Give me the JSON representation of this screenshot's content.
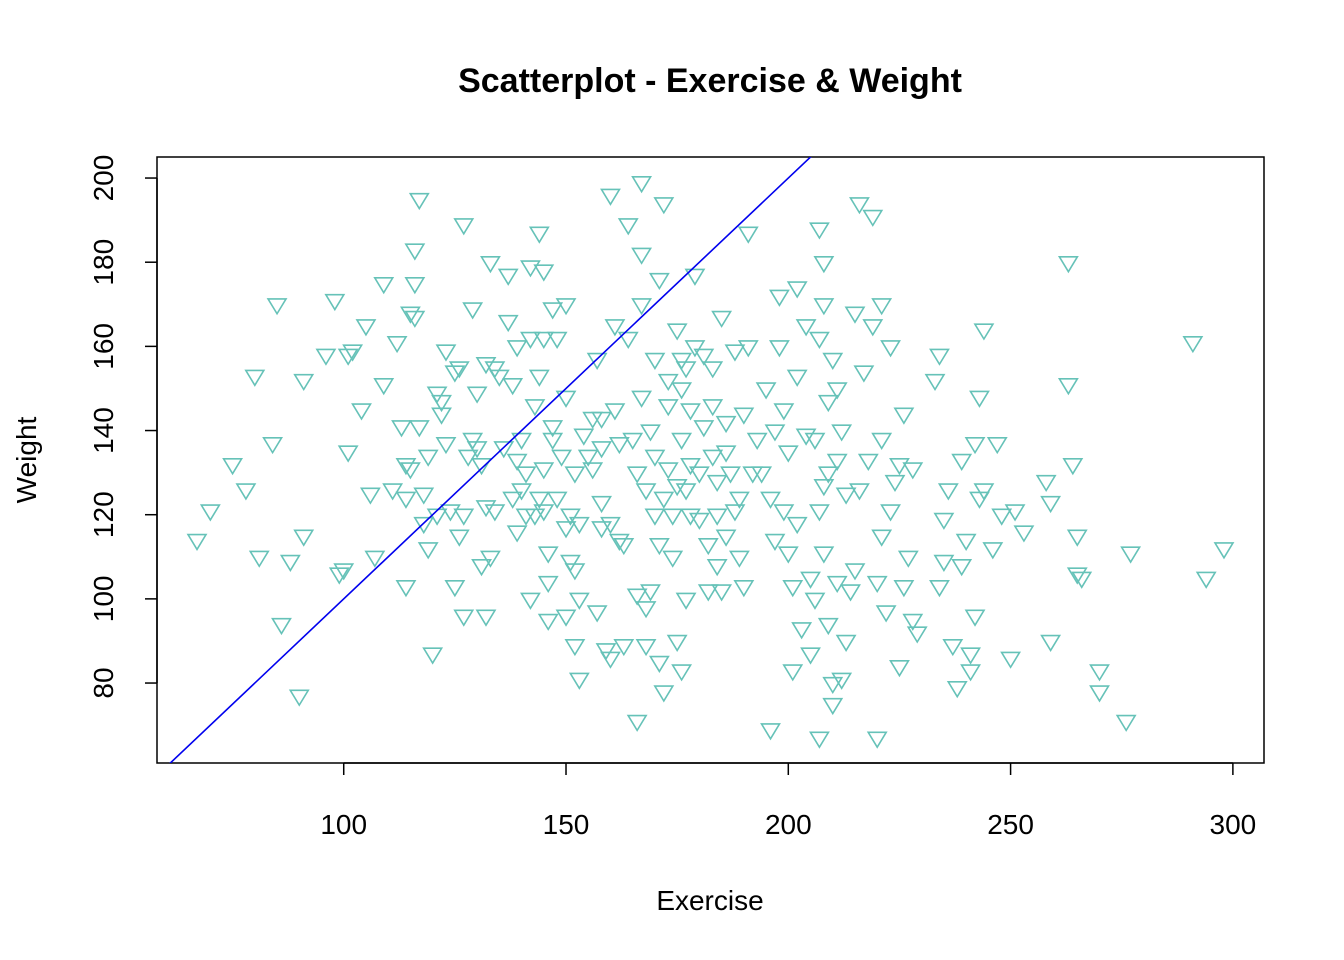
{
  "chart_data": {
    "type": "scatter",
    "title": "Scatterplot - Exercise & Weight",
    "xlabel": "Exercise",
    "ylabel": "Weight",
    "xlim": [
      58,
      307
    ],
    "ylim": [
      61,
      205
    ],
    "xticks": [
      100,
      150,
      200,
      250,
      300
    ],
    "yticks": [
      80,
      100,
      120,
      140,
      160,
      180,
      200
    ],
    "grid": false,
    "legend": "none",
    "marker": "triangle-down",
    "point_color": "#66c2b8",
    "line_color": "#0000ee",
    "fit_line": {
      "intercept": 0,
      "slope": 1
    },
    "points": [
      [
        67,
        114
      ],
      [
        70,
        121
      ],
      [
        75,
        132
      ],
      [
        78,
        126
      ],
      [
        80,
        153
      ],
      [
        81,
        110
      ],
      [
        84,
        137
      ],
      [
        85,
        170
      ],
      [
        86,
        94
      ],
      [
        88,
        109
      ],
      [
        90,
        77
      ],
      [
        91,
        152
      ],
      [
        91,
        115
      ],
      [
        96,
        158
      ],
      [
        98,
        171
      ],
      [
        99,
        106
      ],
      [
        100,
        107
      ],
      [
        101,
        135
      ],
      [
        101,
        158
      ],
      [
        102,
        159
      ],
      [
        104,
        145
      ],
      [
        105,
        165
      ],
      [
        106,
        125
      ],
      [
        107,
        110
      ],
      [
        109,
        151
      ],
      [
        109,
        175
      ],
      [
        111,
        126
      ],
      [
        112,
        161
      ],
      [
        113,
        141
      ],
      [
        114,
        124
      ],
      [
        114,
        132
      ],
      [
        114,
        103
      ],
      [
        115,
        131
      ],
      [
        115,
        168
      ],
      [
        116,
        167
      ],
      [
        116,
        183
      ],
      [
        116,
        175
      ],
      [
        117,
        195
      ],
      [
        117,
        141
      ],
      [
        118,
        118
      ],
      [
        118,
        125
      ],
      [
        119,
        112
      ],
      [
        119,
        134
      ],
      [
        120,
        87
      ],
      [
        121,
        149
      ],
      [
        121,
        120
      ],
      [
        122,
        144
      ],
      [
        122,
        147
      ],
      [
        123,
        159
      ],
      [
        123,
        137
      ],
      [
        124,
        121
      ],
      [
        125,
        154
      ],
      [
        125,
        103
      ],
      [
        126,
        115
      ],
      [
        126,
        155
      ],
      [
        127,
        96
      ],
      [
        127,
        189
      ],
      [
        127,
        120
      ],
      [
        128,
        134
      ],
      [
        129,
        138
      ],
      [
        129,
        169
      ],
      [
        130,
        136
      ],
      [
        130,
        149
      ],
      [
        131,
        108
      ],
      [
        131,
        132
      ],
      [
        132,
        122
      ],
      [
        132,
        96
      ],
      [
        132,
        156
      ],
      [
        133,
        110
      ],
      [
        133,
        180
      ],
      [
        134,
        155
      ],
      [
        134,
        121
      ],
      [
        135,
        153
      ],
      [
        136,
        136
      ],
      [
        137,
        177
      ],
      [
        137,
        166
      ],
      [
        138,
        151
      ],
      [
        138,
        124
      ],
      [
        139,
        160
      ],
      [
        139,
        116
      ],
      [
        139,
        133
      ],
      [
        140,
        126
      ],
      [
        140,
        138
      ],
      [
        141,
        120
      ],
      [
        141,
        130
      ],
      [
        142,
        100
      ],
      [
        142,
        162
      ],
      [
        142,
        179
      ],
      [
        143,
        120
      ],
      [
        143,
        146
      ],
      [
        144,
        187
      ],
      [
        144,
        124
      ],
      [
        144,
        153
      ],
      [
        145,
        121
      ],
      [
        145,
        131
      ],
      [
        145,
        162
      ],
      [
        145,
        178
      ],
      [
        146,
        95
      ],
      [
        146,
        111
      ],
      [
        146,
        104
      ],
      [
        147,
        141
      ],
      [
        147,
        138
      ],
      [
        147,
        169
      ],
      [
        148,
        162
      ],
      [
        148,
        124
      ],
      [
        149,
        134
      ],
      [
        150,
        96
      ],
      [
        150,
        117
      ],
      [
        150,
        148
      ],
      [
        150,
        170
      ],
      [
        151,
        120
      ],
      [
        151,
        109
      ],
      [
        152,
        107
      ],
      [
        152,
        89
      ],
      [
        152,
        130
      ],
      [
        153,
        81
      ],
      [
        153,
        118
      ],
      [
        153,
        100
      ],
      [
        154,
        139
      ],
      [
        155,
        134
      ],
      [
        156,
        131
      ],
      [
        156,
        143
      ],
      [
        157,
        157
      ],
      [
        157,
        97
      ],
      [
        158,
        136
      ],
      [
        158,
        123
      ],
      [
        158,
        117
      ],
      [
        158,
        143
      ],
      [
        159,
        88
      ],
      [
        160,
        196
      ],
      [
        160,
        118
      ],
      [
        160,
        86
      ],
      [
        161,
        165
      ],
      [
        161,
        145
      ],
      [
        162,
        114
      ],
      [
        162,
        137
      ],
      [
        163,
        113
      ],
      [
        163,
        89
      ],
      [
        164,
        189
      ],
      [
        164,
        162
      ],
      [
        165,
        138
      ],
      [
        166,
        71
      ],
      [
        166,
        101
      ],
      [
        166,
        130
      ],
      [
        167,
        148
      ],
      [
        167,
        170
      ],
      [
        167,
        182
      ],
      [
        167,
        199
      ],
      [
        168,
        98
      ],
      [
        168,
        126
      ],
      [
        168,
        89
      ],
      [
        169,
        102
      ],
      [
        169,
        140
      ],
      [
        170,
        157
      ],
      [
        170,
        120
      ],
      [
        170,
        134
      ],
      [
        171,
        85
      ],
      [
        171,
        113
      ],
      [
        171,
        176
      ],
      [
        172,
        78
      ],
      [
        172,
        194
      ],
      [
        172,
        124
      ],
      [
        173,
        152
      ],
      [
        173,
        146
      ],
      [
        173,
        131
      ],
      [
        174,
        120
      ],
      [
        174,
        110
      ],
      [
        175,
        90
      ],
      [
        175,
        127
      ],
      [
        175,
        164
      ],
      [
        176,
        138
      ],
      [
        176,
        150
      ],
      [
        176,
        83
      ],
      [
        176,
        157
      ],
      [
        177,
        126
      ],
      [
        177,
        155
      ],
      [
        177,
        100
      ],
      [
        178,
        120
      ],
      [
        178,
        132
      ],
      [
        178,
        145
      ],
      [
        179,
        177
      ],
      [
        179,
        160
      ],
      [
        180,
        119
      ],
      [
        180,
        130
      ],
      [
        181,
        141
      ],
      [
        181,
        158
      ],
      [
        182,
        113
      ],
      [
        182,
        102
      ],
      [
        183,
        134
      ],
      [
        183,
        146
      ],
      [
        183,
        155
      ],
      [
        184,
        120
      ],
      [
        184,
        128
      ],
      [
        184,
        108
      ],
      [
        185,
        102
      ],
      [
        185,
        167
      ],
      [
        186,
        142
      ],
      [
        186,
        135
      ],
      [
        186,
        115
      ],
      [
        187,
        130
      ],
      [
        188,
        121
      ],
      [
        188,
        159
      ],
      [
        189,
        110
      ],
      [
        189,
        124
      ],
      [
        190,
        144
      ],
      [
        190,
        103
      ],
      [
        191,
        187
      ],
      [
        191,
        160
      ],
      [
        192,
        130
      ],
      [
        193,
        138
      ],
      [
        194,
        130
      ],
      [
        195,
        150
      ],
      [
        196,
        69
      ],
      [
        196,
        124
      ],
      [
        197,
        114
      ],
      [
        197,
        140
      ],
      [
        198,
        160
      ],
      [
        198,
        172
      ],
      [
        199,
        121
      ],
      [
        199,
        145
      ],
      [
        200,
        111
      ],
      [
        200,
        135
      ],
      [
        201,
        83
      ],
      [
        201,
        103
      ],
      [
        202,
        174
      ],
      [
        202,
        153
      ],
      [
        202,
        118
      ],
      [
        203,
        93
      ],
      [
        204,
        139
      ],
      [
        204,
        165
      ],
      [
        205,
        105
      ],
      [
        205,
        87
      ],
      [
        206,
        100
      ],
      [
        206,
        138
      ],
      [
        207,
        162
      ],
      [
        207,
        121
      ],
      [
        207,
        67
      ],
      [
        207,
        188
      ],
      [
        208,
        180
      ],
      [
        208,
        127
      ],
      [
        208,
        170
      ],
      [
        208,
        111
      ],
      [
        209,
        130
      ],
      [
        209,
        147
      ],
      [
        209,
        94
      ],
      [
        210,
        80
      ],
      [
        210,
        75
      ],
      [
        210,
        157
      ],
      [
        211,
        133
      ],
      [
        211,
        150
      ],
      [
        211,
        104
      ],
      [
        212,
        81
      ],
      [
        212,
        140
      ],
      [
        213,
        90
      ],
      [
        213,
        125
      ],
      [
        214,
        102
      ],
      [
        215,
        107
      ],
      [
        215,
        168
      ],
      [
        216,
        194
      ],
      [
        216,
        126
      ],
      [
        217,
        154
      ],
      [
        218,
        133
      ],
      [
        219,
        165
      ],
      [
        219,
        191
      ],
      [
        220,
        104
      ],
      [
        220,
        67
      ],
      [
        221,
        138
      ],
      [
        221,
        170
      ],
      [
        221,
        115
      ],
      [
        222,
        97
      ],
      [
        223,
        121
      ],
      [
        223,
        160
      ],
      [
        224,
        128
      ],
      [
        225,
        132
      ],
      [
        225,
        84
      ],
      [
        226,
        144
      ],
      [
        226,
        103
      ],
      [
        227,
        110
      ],
      [
        228,
        95
      ],
      [
        228,
        131
      ],
      [
        229,
        92
      ],
      [
        233,
        152
      ],
      [
        234,
        103
      ],
      [
        234,
        158
      ],
      [
        235,
        109
      ],
      [
        235,
        119
      ],
      [
        236,
        126
      ],
      [
        237,
        89
      ],
      [
        238,
        79
      ],
      [
        239,
        108
      ],
      [
        239,
        133
      ],
      [
        240,
        114
      ],
      [
        241,
        87
      ],
      [
        241,
        83
      ],
      [
        242,
        137
      ],
      [
        242,
        96
      ],
      [
        243,
        148
      ],
      [
        243,
        124
      ],
      [
        244,
        164
      ],
      [
        244,
        126
      ],
      [
        246,
        112
      ],
      [
        247,
        137
      ],
      [
        248,
        120
      ],
      [
        250,
        86
      ],
      [
        251,
        121
      ],
      [
        253,
        116
      ],
      [
        258,
        128
      ],
      [
        259,
        123
      ],
      [
        259,
        90
      ],
      [
        263,
        180
      ],
      [
        263,
        151
      ],
      [
        264,
        132
      ],
      [
        265,
        115
      ],
      [
        265,
        106
      ],
      [
        266,
        105
      ],
      [
        270,
        83
      ],
      [
        270,
        78
      ],
      [
        276,
        71
      ],
      [
        277,
        111
      ],
      [
        291,
        161
      ],
      [
        294,
        105
      ],
      [
        298,
        112
      ]
    ]
  }
}
